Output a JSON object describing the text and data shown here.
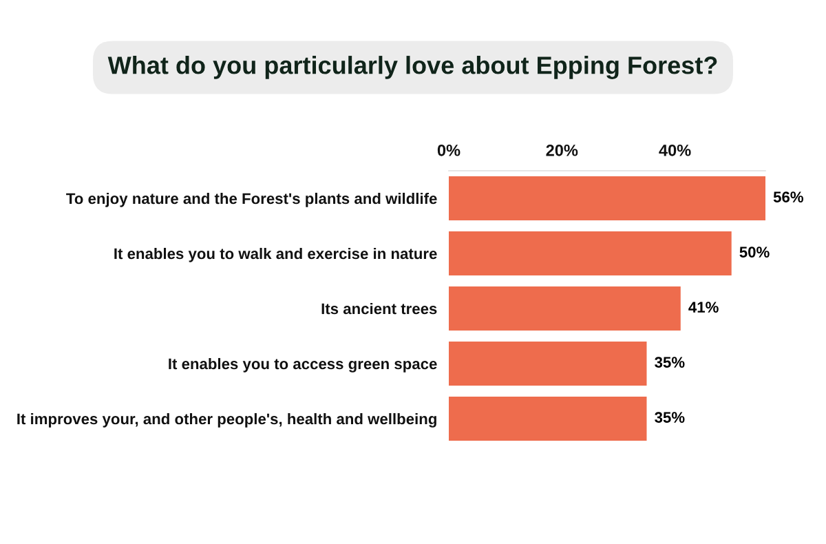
{
  "chart_data": {
    "type": "bar",
    "orientation": "horizontal",
    "title": "What do you particularly love about Epping Forest?",
    "categories": [
      "To enjoy nature and the Forest's plants and wildlife",
      "It enables you to walk and exercise in nature",
      "Its ancient trees",
      "It enables you to access green space",
      "It improves your, and other people's, health and wellbeing"
    ],
    "values": [
      56,
      50,
      41,
      35,
      35
    ],
    "value_labels": [
      "56%",
      "50%",
      "41%",
      "35%",
      "35%"
    ],
    "color": "#ee6c4d",
    "xlim": [
      0,
      56
    ],
    "xticks": [
      {
        "value": 0,
        "label": "0%"
      },
      {
        "value": 20,
        "label": "20%"
      },
      {
        "value": 40,
        "label": "40%"
      }
    ],
    "grid": false,
    "legend": false
  }
}
